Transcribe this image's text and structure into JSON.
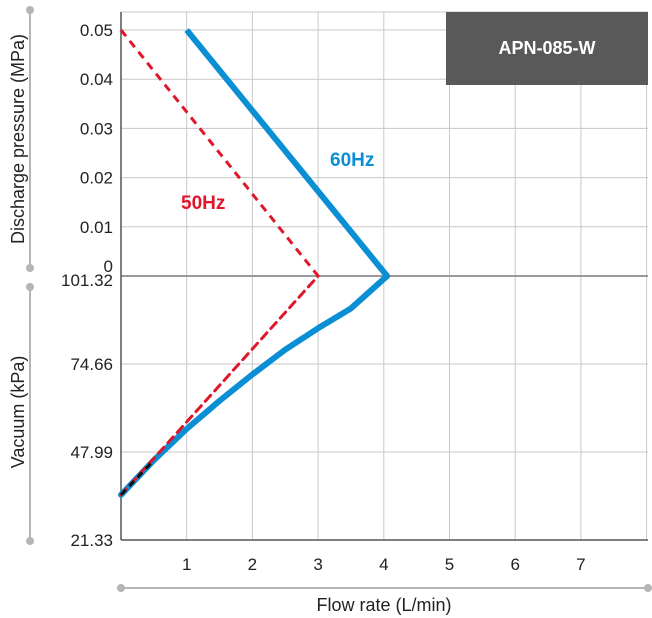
{
  "chart_data": {
    "type": "line",
    "model_label": "APN-085-W",
    "xlabel": "Flow rate (L/min)",
    "ylabel_top": "Discharge pressure (MPa)",
    "ylabel_bottom": "Vacuum (kPa)",
    "x_range": [
      0,
      8
    ],
    "x_ticks": [
      "1",
      "2",
      "3",
      "4",
      "5",
      "6",
      "7"
    ],
    "pressure_range": [
      0,
      0.05
    ],
    "pressure_ticks": [
      "0.05",
      "0.04",
      "0.03",
      "0.02",
      "0.01",
      "0"
    ],
    "vacuum_range": [
      21.33,
      101.32
    ],
    "vacuum_ticks": [
      "101.32",
      "74.66",
      "47.99",
      "21.33"
    ],
    "grid": true,
    "colors": {
      "60Hz": "#0a8fd4",
      "50Hz": "#e0162b",
      "grid": "#c8c8c8",
      "zero_line": "#9a9a9a",
      "model_box": "#595959"
    },
    "series": [
      {
        "name": "60Hz",
        "style": "solid",
        "pressure_curve": {
          "x": [
            1,
            4.05
          ],
          "y_mpa": [
            0.05,
            0
          ]
        },
        "vacuum_curve": {
          "x": [
            0,
            0.5,
            1.0,
            1.5,
            2.0,
            2.5,
            3.0,
            3.5,
            4.05
          ],
          "y_kpa": [
            35.0,
            45.5,
            55.0,
            63.5,
            71.5,
            79.0,
            85.5,
            91.5,
            101.32
          ]
        }
      },
      {
        "name": "50Hz",
        "style": "dashed",
        "pressure_curve": {
          "x": [
            0,
            3.0
          ],
          "y_mpa": [
            0.05,
            0
          ]
        },
        "vacuum_curve": {
          "x": [
            0,
            3.0
          ],
          "y_kpa": [
            35.0,
            101.32
          ]
        }
      }
    ]
  }
}
